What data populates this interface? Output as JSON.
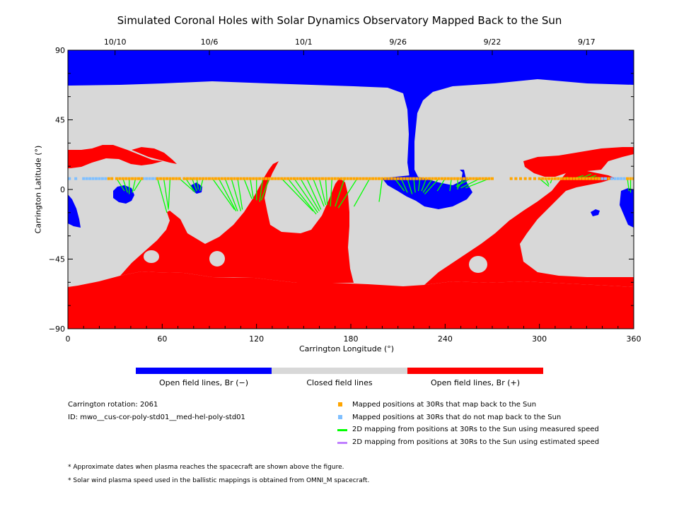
{
  "title": "Simulated Coronal Holes with Solar Dynamics Observatory Mapped Back to the Sun",
  "date_ticks": [
    "10/10",
    "10/6",
    "10/1",
    "9/26",
    "9/22",
    "9/17"
  ],
  "colors": {
    "open_negative": "#0000ff",
    "closed": "#d8d8d8",
    "open_positive": "#ff0000",
    "mapped": "#ffa500",
    "not_mapped": "#7fbfff",
    "measured_speed": "#00ff00",
    "estimated_speed": "#c080ff"
  },
  "colorbar_labels": {
    "negative": "Open field lines, Br (−)",
    "closed": "Closed field lines",
    "positive": "Open field lines, Br (+)"
  },
  "info": {
    "rotation": "Carrington rotation: 2061",
    "id": "ID: mwo__cus-cor-poly-std01__med-hel-poly-std01"
  },
  "legend": {
    "mapped": "Mapped positions at 30Rs that map back to the Sun",
    "not_mapped": "Mapped positions at 30Rs that do not map back to the Sun",
    "measured": "2D mapping from positions at 30Rs to the Sun using measured speed",
    "estimated": "2D mapping from positions at 30Rs to the Sun using estimated speed"
  },
  "footnotes": [
    "* Approximate dates when plasma reaches the spacecraft are shown above the figure.",
    "* Solar wind plasma speed used in the ballistic mappings is obtained from OMNI_M spacecraft."
  ],
  "chart_data": {
    "type": "heatmap",
    "xlabel": "Carrington Longitude (°)",
    "ylabel": "Carrington Latitude (°)",
    "xlim": [
      0,
      360
    ],
    "ylim": [
      -90,
      90
    ],
    "x_ticks": [
      0,
      60,
      120,
      180,
      240,
      300,
      360
    ],
    "y_ticks": [
      -90,
      -45,
      0,
      45,
      90
    ],
    "top_axis_dates": [
      {
        "date": "10/10",
        "lon": 30
      },
      {
        "date": "10/6",
        "lon": 90
      },
      {
        "date": "10/1",
        "lon": 150
      },
      {
        "date": "9/26",
        "lon": 210
      },
      {
        "date": "9/22",
        "lon": 270
      },
      {
        "date": "9/17",
        "lon": 330
      }
    ],
    "spacecraft_latitude": 7,
    "mapped_longitudes": [
      26,
      28,
      31,
      33,
      35,
      37,
      39,
      41,
      43,
      45,
      47,
      57,
      59,
      61,
      63,
      65,
      67,
      69,
      71,
      74,
      76,
      78,
      80,
      82,
      84,
      86,
      88,
      90,
      92,
      94,
      96,
      98,
      100,
      102,
      104,
      106,
      108,
      110,
      112,
      114,
      116,
      118,
      120,
      122,
      124,
      126,
      128,
      130,
      132,
      134,
      136,
      138,
      140,
      142,
      144,
      146,
      148,
      150,
      152,
      154,
      156,
      158,
      160,
      162,
      164,
      166,
      168,
      170,
      172,
      174,
      176,
      178,
      180,
      182,
      184,
      186,
      188,
      190,
      192,
      194,
      196,
      198,
      200,
      202,
      204,
      206,
      208,
      210,
      212,
      214,
      216,
      218,
      220,
      222,
      224,
      226,
      228,
      230,
      232,
      234,
      236,
      238,
      240,
      242,
      244,
      246,
      248,
      250,
      252,
      254,
      256,
      258,
      260,
      262,
      264,
      266,
      268,
      270,
      282,
      285,
      288,
      291,
      294,
      297,
      300,
      302,
      304,
      306,
      308,
      310,
      312,
      314,
      316,
      318,
      320,
      322,
      324,
      326,
      328,
      330,
      332,
      334,
      336,
      338,
      344,
      356,
      358,
      360
    ],
    "not_mapped_longitudes": [
      1,
      5,
      10,
      12,
      14,
      16,
      18,
      20,
      22,
      24,
      48,
      50,
      52,
      54,
      56,
      338,
      340,
      342,
      346,
      348,
      350,
      352,
      354
    ],
    "measured_mappings": [
      {
        "from": 31,
        "to": [
          36,
          -1
        ]
      },
      {
        "from": 35,
        "to": [
          38,
          -2
        ]
      },
      {
        "from": 39,
        "to": [
          39,
          -3
        ]
      },
      {
        "from": 43,
        "to": [
          41,
          -2
        ]
      },
      {
        "from": 47,
        "to": [
          42,
          -1
        ]
      },
      {
        "from": 57,
        "to": [
          63,
          -15
        ]
      },
      {
        "from": 61,
        "to": [
          64,
          -13
        ]
      },
      {
        "from": 65,
        "to": [
          64,
          -12
        ]
      },
      {
        "from": 71,
        "to": [
          80,
          -1
        ]
      },
      {
        "from": 75,
        "to": [
          81,
          -2
        ]
      },
      {
        "from": 79,
        "to": [
          82,
          -1
        ]
      },
      {
        "from": 82,
        "to": [
          83,
          0
        ]
      },
      {
        "from": 86,
        "to": [
          84,
          -1
        ]
      },
      {
        "from": 92,
        "to": [
          106,
          -13
        ]
      },
      {
        "from": 96,
        "to": [
          107,
          -14
        ]
      },
      {
        "from": 100,
        "to": [
          108,
          -14
        ]
      },
      {
        "from": 104,
        "to": [
          110,
          -14
        ]
      },
      {
        "from": 108,
        "to": [
          111,
          -13
        ]
      },
      {
        "from": 112,
        "to": [
          117,
          -6
        ]
      },
      {
        "from": 116,
        "to": [
          118,
          -6
        ]
      },
      {
        "from": 120,
        "to": [
          120,
          -7
        ]
      },
      {
        "from": 124,
        "to": [
          122,
          -8
        ]
      },
      {
        "from": 128,
        "to": [
          123,
          -7
        ]
      },
      {
        "from": 136,
        "to": [
          156,
          -14
        ]
      },
      {
        "from": 140,
        "to": [
          158,
          -16
        ]
      },
      {
        "from": 144,
        "to": [
          159,
          -15
        ]
      },
      {
        "from": 148,
        "to": [
          160,
          -14
        ]
      },
      {
        "from": 152,
        "to": [
          161,
          -13
        ]
      },
      {
        "from": 156,
        "to": [
          163,
          -11
        ]
      },
      {
        "from": 160,
        "to": [
          164,
          -10
        ]
      },
      {
        "from": 164,
        "to": [
          165,
          -10
        ]
      },
      {
        "from": 168,
        "to": [
          167,
          -11
        ]
      },
      {
        "from": 176,
        "to": [
          170,
          -11
        ]
      },
      {
        "from": 184,
        "to": [
          172,
          -12
        ]
      },
      {
        "from": 192,
        "to": [
          182,
          -11
        ]
      },
      {
        "from": 200,
        "to": [
          198,
          -8
        ]
      },
      {
        "from": 208,
        "to": [
          214,
          -1
        ]
      },
      {
        "from": 212,
        "to": [
          216,
          -2
        ]
      },
      {
        "from": 216,
        "to": [
          219,
          -3
        ]
      },
      {
        "from": 220,
        "to": [
          221,
          -2
        ]
      },
      {
        "from": 224,
        "to": [
          223,
          -1
        ]
      },
      {
        "from": 228,
        "to": [
          225,
          -1
        ]
      },
      {
        "from": 232,
        "to": [
          226,
          -2
        ]
      },
      {
        "from": 236,
        "to": [
          227,
          -3
        ]
      },
      {
        "from": 240,
        "to": [
          235,
          -1
        ]
      },
      {
        "from": 244,
        "to": [
          243,
          -1
        ]
      },
      {
        "from": 248,
        "to": [
          248,
          0
        ]
      },
      {
        "from": 252,
        "to": [
          248,
          1
        ]
      },
      {
        "from": 256,
        "to": [
          247,
          2
        ]
      },
      {
        "from": 262,
        "to": [
          250,
          1
        ]
      },
      {
        "from": 268,
        "to": [
          253,
          1
        ]
      },
      {
        "from": 300,
        "to": [
          306,
          2
        ]
      },
      {
        "from": 304,
        "to": [
          306,
          3
        ]
      },
      {
        "from": 308,
        "to": [
          307,
          4
        ]
      },
      {
        "from": 316,
        "to": [
          318,
          8
        ]
      },
      {
        "from": 322,
        "to": [
          328,
          9
        ]
      },
      {
        "from": 326,
        "to": [
          333,
          10
        ]
      },
      {
        "from": 330,
        "to": [
          336,
          9
        ]
      },
      {
        "from": 334,
        "to": [
          337,
          8
        ]
      },
      {
        "from": 356,
        "to": [
          357,
          -1
        ]
      },
      {
        "from": 358,
        "to": [
          358,
          -2
        ]
      }
    ]
  }
}
